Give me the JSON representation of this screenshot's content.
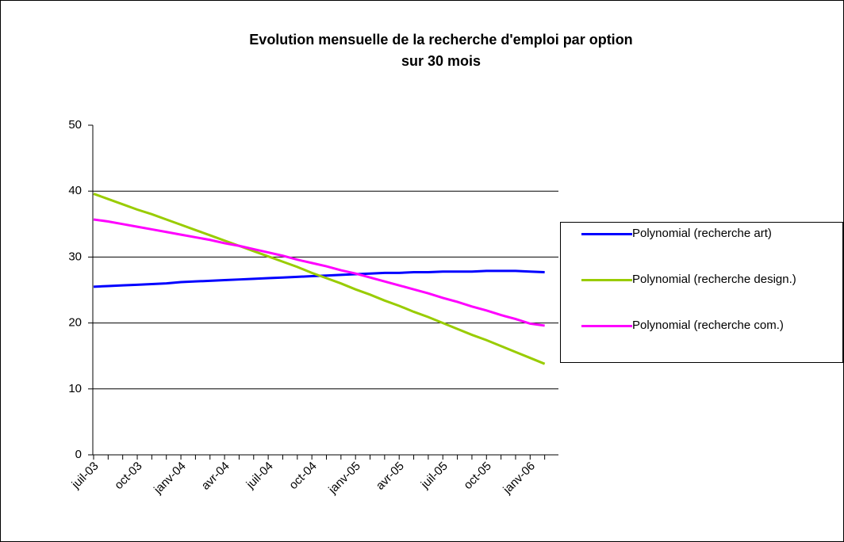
{
  "chart_data": {
    "type": "line",
    "title": "Evolution mensuelle de la recherche d'emploi par option\nsur 30 mois",
    "categories": [
      "juil-03",
      null,
      null,
      "oct-03",
      null,
      null,
      "janv-04",
      null,
      null,
      "avr-04",
      null,
      null,
      "juil-04",
      null,
      null,
      "oct-04",
      null,
      null,
      "janv-05",
      null,
      null,
      "avr-05",
      null,
      null,
      "juil-05",
      null,
      null,
      "oct-05",
      null,
      null,
      "janv-06",
      null
    ],
    "series": [
      {
        "name": "Polynomial (recherche art)",
        "color": "#0000ff",
        "values": [
          25.5,
          25.6,
          25.7,
          25.8,
          25.9,
          26.0,
          26.2,
          26.3,
          26.4,
          26.5,
          26.6,
          26.7,
          26.8,
          26.9,
          27.0,
          27.1,
          27.2,
          27.3,
          27.4,
          27.5,
          27.6,
          27.6,
          27.7,
          27.7,
          27.8,
          27.8,
          27.8,
          27.9,
          27.9,
          27.9,
          27.8,
          27.7
        ]
      },
      {
        "name": "Polynomial (recherche design.)",
        "color": "#99cc00",
        "values": [
          39.6,
          38.8,
          38.0,
          37.2,
          36.5,
          35.7,
          34.9,
          34.1,
          33.3,
          32.5,
          31.7,
          30.9,
          30.1,
          29.3,
          28.5,
          27.6,
          26.8,
          26.0,
          25.1,
          24.3,
          23.4,
          22.6,
          21.7,
          20.9,
          20.0,
          19.1,
          18.2,
          17.4,
          16.5,
          15.6,
          14.7,
          13.8
        ]
      },
      {
        "name": "Polynomial (recherche com.)",
        "color": "#ff00ff",
        "values": [
          35.7,
          35.4,
          35.0,
          34.6,
          34.2,
          33.8,
          33.4,
          33.0,
          32.6,
          32.1,
          31.7,
          31.2,
          30.7,
          30.2,
          29.6,
          29.1,
          28.6,
          28.0,
          27.5,
          26.9,
          26.3,
          25.7,
          25.1,
          24.5,
          23.8,
          23.2,
          22.5,
          21.9,
          21.2,
          20.6,
          19.9,
          19.6
        ]
      }
    ],
    "ylim": [
      0,
      50
    ],
    "yticks": [
      0,
      10,
      20,
      30,
      40,
      50
    ],
    "grid": true,
    "legend": "right"
  }
}
